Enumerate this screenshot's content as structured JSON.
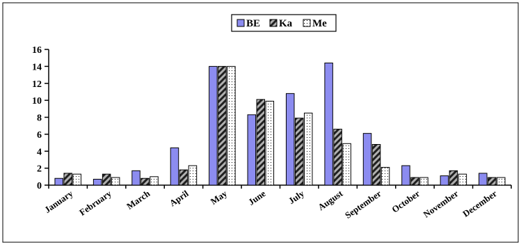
{
  "chart_data": {
    "type": "bar",
    "title": "",
    "xlabel": "",
    "ylabel": "",
    "ylim": [
      0,
      16
    ],
    "yticks": [
      0,
      2,
      4,
      6,
      8,
      10,
      12,
      14,
      16
    ],
    "grid": false,
    "legend_position": "top-center",
    "categories": [
      "January",
      "February",
      "March",
      "April",
      "May",
      "June",
      "July",
      "August",
      "September",
      "October",
      "November",
      "December"
    ],
    "series": [
      {
        "name": "BE",
        "color": "#8c8cf0",
        "pattern": "solid",
        "values": [
          0.8,
          0.7,
          1.7,
          4.4,
          14,
          8.3,
          10.8,
          14.4,
          6.1,
          2.3,
          1.1,
          1.4
        ]
      },
      {
        "name": "Ka",
        "color": "#808080",
        "pattern": "hatch",
        "values": [
          1.4,
          1.3,
          0.8,
          1.8,
          14,
          10.1,
          7.9,
          6.6,
          4.8,
          0.9,
          1.7,
          0.9
        ]
      },
      {
        "name": "Me",
        "color": "#ffffff",
        "pattern": "dots",
        "values": [
          1.3,
          0.9,
          1.0,
          2.3,
          14,
          9.9,
          8.5,
          4.9,
          2.1,
          0.9,
          1.3,
          0.9
        ]
      }
    ]
  }
}
